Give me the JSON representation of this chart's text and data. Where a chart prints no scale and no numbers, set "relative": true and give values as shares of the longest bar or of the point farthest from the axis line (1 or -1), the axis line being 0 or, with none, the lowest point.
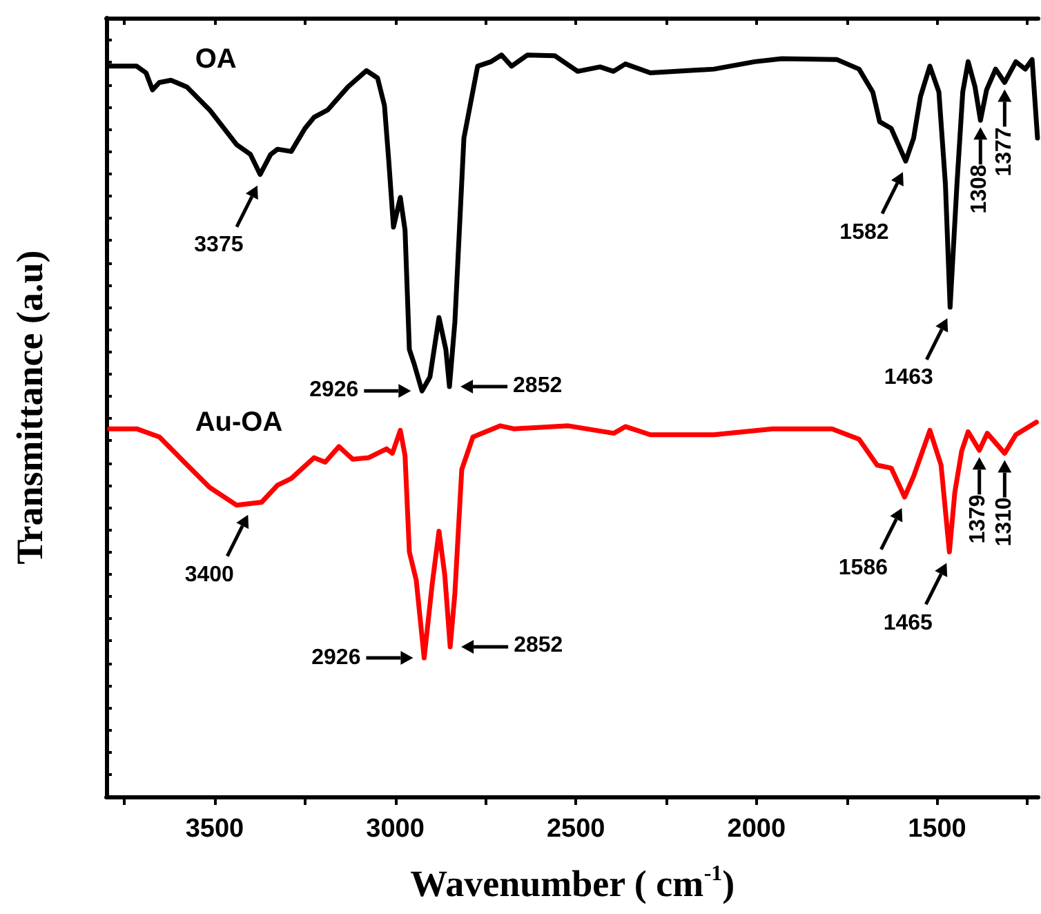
{
  "chart_data": {
    "type": "line",
    "relative": true,
    "xlabel": "Wavenumber ( cm$^{-1}$)",
    "ylabel": "Transmittance (a.u)",
    "xlim": [
      3800,
      1220
    ],
    "xticks": [
      {
        "value": 3750,
        "label": null
      },
      3500,
      {
        "value": 3250,
        "label": null
      },
      3000,
      {
        "value": 2750,
        "label": null
      },
      2500,
      {
        "value": 2250,
        "label": null
      },
      2000,
      {
        "value": 1750,
        "label": null
      },
      1500,
      {
        "value": 1250,
        "label": null
      }
    ],
    "tick_labels": "x",
    "marker": "none",
    "line_style": "solid",
    "series": [
      {
        "name": "OA",
        "color": "#000000",
        "x": [
          3791,
          3716,
          3690,
          3672,
          3653,
          3621,
          3577,
          3514,
          3439,
          3401,
          3374,
          3345,
          3326,
          3288,
          3250,
          3225,
          3187,
          3131,
          3080,
          3049,
          3030,
          3018,
          3005,
          2986,
          2973,
          2961,
          2948,
          2926,
          2904,
          2879,
          2860,
          2850,
          2835,
          2810,
          2772,
          2735,
          2706,
          2678,
          2634,
          2558,
          2495,
          2433,
          2396,
          2363,
          2294,
          2118,
          2005,
          1930,
          1778,
          1716,
          1678,
          1659,
          1627,
          1587,
          1565,
          1546,
          1520,
          1495,
          1477,
          1464,
          1445,
          1429,
          1414,
          1395,
          1380,
          1363,
          1338,
          1313,
          1282,
          1256,
          1237,
          1222
        ],
        "values": [
          0.985,
          0.985,
          0.976,
          0.953,
          0.963,
          0.966,
          0.957,
          0.926,
          0.879,
          0.866,
          0.839,
          0.866,
          0.873,
          0.87,
          0.901,
          0.916,
          0.926,
          0.957,
          0.979,
          0.969,
          0.932,
          0.857,
          0.768,
          0.808,
          0.764,
          0.603,
          0.584,
          0.547,
          0.566,
          0.646,
          0.603,
          0.553,
          0.64,
          0.888,
          0.985,
          0.991,
          1,
          0.985,
          1,
          0.999,
          0.978,
          0.984,
          0.978,
          0.988,
          0.976,
          0.981,
          0.991,
          0.995,
          0.994,
          0.981,
          0.95,
          0.91,
          0.901,
          0.857,
          0.888,
          0.944,
          0.985,
          0.95,
          0.826,
          0.66,
          0.826,
          0.95,
          0.991,
          0.957,
          0.912,
          0.953,
          0.981,
          0.963,
          0.991,
          0.981,
          0.994,
          0.888
        ]
      },
      {
        "name": "Au-OA",
        "color": "#ff0000",
        "x": [
          3791,
          3716,
          3653,
          3584,
          3514,
          3439,
          3370,
          3326,
          3288,
          3225,
          3194,
          3156,
          3118,
          3074,
          3024,
          3008,
          2986,
          2973,
          2961,
          2942,
          2920,
          2898,
          2879,
          2863,
          2848,
          2835,
          2816,
          2785,
          2709,
          2672,
          2521,
          2395,
          2363,
          2294,
          2118,
          1955,
          1791,
          1716,
          1666,
          1627,
          1590,
          1565,
          1520,
          1489,
          1466,
          1451,
          1432,
          1414,
          1383,
          1361,
          1313,
          1282,
          1225
        ],
        "values": [
          0.496,
          0.496,
          0.485,
          0.451,
          0.417,
          0.393,
          0.397,
          0.42,
          0.429,
          0.457,
          0.451,
          0.472,
          0.455,
          0.457,
          0.469,
          0.463,
          0.494,
          0.46,
          0.33,
          0.292,
          0.187,
          0.286,
          0.358,
          0.299,
          0.202,
          0.274,
          0.441,
          0.485,
          0.5,
          0.496,
          0.5,
          0.49,
          0.499,
          0.488,
          0.488,
          0.496,
          0.496,
          0.482,
          0.447,
          0.443,
          0.404,
          0.432,
          0.494,
          0.447,
          0.33,
          0.41,
          0.466,
          0.492,
          0.467,
          0.49,
          0.463,
          0.488,
          0.505
        ]
      }
    ],
    "annotations": [
      {
        "text": "3375",
        "x": 3374,
        "y": 0.839
      },
      {
        "text": "2926",
        "x": 2926,
        "y": 0.547
      },
      {
        "text": "2852",
        "x": 2850,
        "y": 0.553
      },
      {
        "text": "1582",
        "x": 1587,
        "y": 0.857
      },
      {
        "text": "1463",
        "x": 1464,
        "y": 0.66
      },
      {
        "text": "1308",
        "x": 1380,
        "y": 0.912
      },
      {
        "text": "1377",
        "x": 1313,
        "y": 0.963
      },
      {
        "text": "3400",
        "x": 3400,
        "y": 0.395
      },
      {
        "text": "2926",
        "x": 2920,
        "y": 0.187
      },
      {
        "text": "2852",
        "x": 2848,
        "y": 0.202
      },
      {
        "text": "1586",
        "x": 1590,
        "y": 0.404
      },
      {
        "text": "1465",
        "x": 1466,
        "y": 0.33
      },
      {
        "text": "1379",
        "x": 1383,
        "y": 0.467
      },
      {
        "text": "1310",
        "x": 1313,
        "y": 0.463
      }
    ]
  }
}
